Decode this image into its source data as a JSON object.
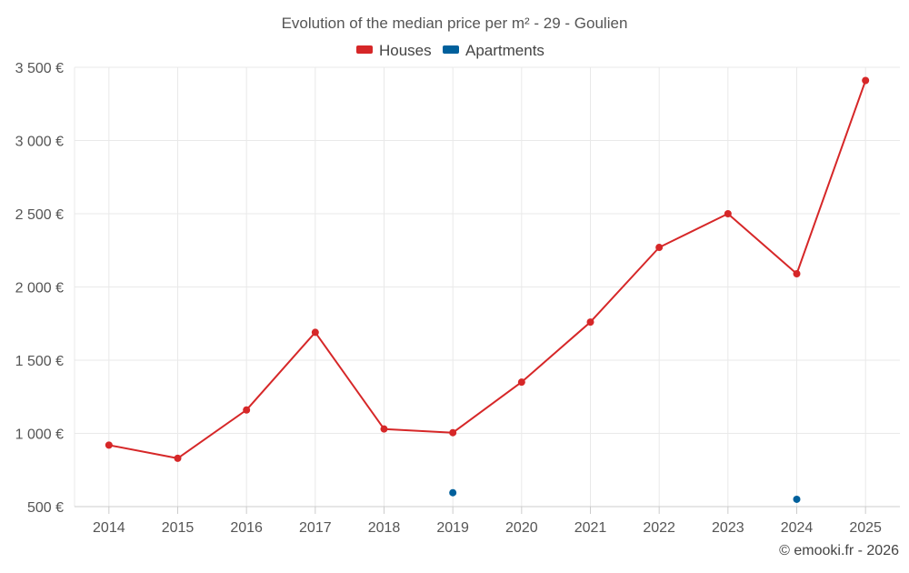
{
  "chart_data": {
    "type": "line",
    "title": "Evolution of the median price per m² - 29 - Goulien",
    "xlabel": "",
    "ylabel": "",
    "x": [
      2014,
      2015,
      2016,
      2017,
      2018,
      2019,
      2020,
      2021,
      2022,
      2023,
      2024,
      2025
    ],
    "ylim": [
      500,
      3500
    ],
    "yticks": [
      500,
      1000,
      1500,
      2000,
      2500,
      3000,
      3500
    ],
    "ytick_labels": [
      "500 €",
      "1 000 €",
      "1 500 €",
      "2 000 €",
      "2 500 €",
      "3 000 €",
      "3 500 €"
    ],
    "series": [
      {
        "name": "Houses",
        "color": "#d62728",
        "values": [
          920,
          830,
          1160,
          1690,
          1030,
          1005,
          1350,
          1760,
          2270,
          2500,
          2090,
          3410
        ]
      },
      {
        "name": "Apartments",
        "color": "#00609c",
        "values": [
          null,
          null,
          null,
          null,
          null,
          595,
          null,
          null,
          null,
          null,
          550,
          null
        ]
      }
    ],
    "legend_position": "top-center",
    "grid": true
  },
  "credit": "© emooki.fr - 2026"
}
